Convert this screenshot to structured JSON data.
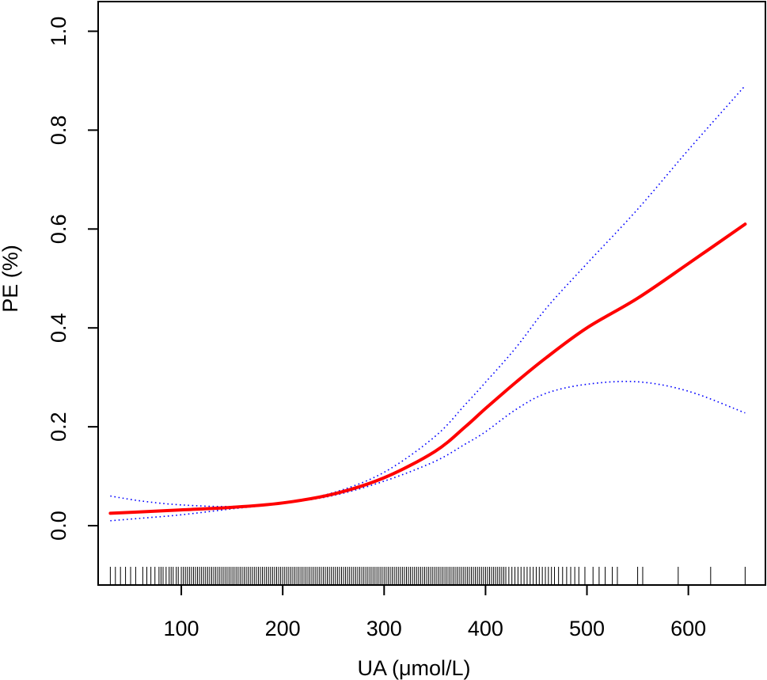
{
  "chart_data": {
    "type": "line",
    "xlabel": "UA (μmol/L)",
    "ylabel": "PE (%)",
    "xlim": [
      18,
      676
    ],
    "ylim": [
      -0.12,
      1.06
    ],
    "x_ticks": [
      100,
      200,
      300,
      400,
      500,
      600
    ],
    "x_tick_labels": [
      "100",
      "200",
      "300",
      "400",
      "500",
      "600"
    ],
    "y_ticks": [
      0.0,
      0.2,
      0.4,
      0.6,
      0.8,
      1.0
    ],
    "y_tick_labels": [
      "0.0",
      "0.2",
      "0.4",
      "0.6",
      "0.8",
      "1.0"
    ],
    "grid": false,
    "series": [
      {
        "role": "fit",
        "style": "solid",
        "color": "#ff0000",
        "x": [
          30,
          60,
          100,
          150,
          200,
          250,
          300,
          350,
          380,
          400,
          430,
          460,
          500,
          550,
          600,
          656
        ],
        "y": [
          0.025,
          0.028,
          0.032,
          0.037,
          0.046,
          0.064,
          0.097,
          0.15,
          0.2,
          0.237,
          0.29,
          0.34,
          0.4,
          0.46,
          0.53,
          0.61
        ]
      },
      {
        "role": "upper-ci",
        "style": "dotted",
        "color": "#0000ff",
        "x": [
          30,
          60,
          100,
          150,
          200,
          250,
          300,
          350,
          380,
          400,
          430,
          460,
          500,
          550,
          600,
          656
        ],
        "y": [
          0.06,
          0.05,
          0.042,
          0.039,
          0.047,
          0.067,
          0.108,
          0.18,
          0.245,
          0.29,
          0.36,
          0.44,
          0.53,
          0.64,
          0.76,
          0.89
        ]
      },
      {
        "role": "lower-ci",
        "style": "dotted",
        "color": "#0000ff",
        "x": [
          30,
          60,
          100,
          150,
          200,
          250,
          300,
          350,
          380,
          400,
          430,
          460,
          500,
          550,
          600,
          656
        ],
        "y": [
          0.01,
          0.015,
          0.022,
          0.034,
          0.045,
          0.061,
          0.09,
          0.13,
          0.165,
          0.19,
          0.235,
          0.268,
          0.286,
          0.291,
          0.272,
          0.228
        ]
      }
    ],
    "rug": [
      30,
      35,
      40,
      45,
      50,
      55,
      62,
      66,
      70,
      74,
      78,
      80,
      82,
      85,
      88,
      90,
      92,
      95,
      97,
      100,
      102,
      104,
      106,
      108,
      110,
      112,
      114,
      116,
      118,
      120,
      122,
      124,
      126,
      128,
      130,
      132,
      134,
      136,
      138,
      140,
      142,
      144,
      146,
      148,
      150,
      152,
      154,
      156,
      158,
      160,
      162,
      164,
      166,
      168,
      170,
      172,
      174,
      176,
      178,
      180,
      182,
      184,
      186,
      188,
      190,
      192,
      194,
      196,
      198,
      200,
      202,
      204,
      206,
      208,
      210,
      212,
      214,
      216,
      218,
      220,
      222,
      224,
      226,
      228,
      230,
      232,
      234,
      236,
      238,
      240,
      242,
      244,
      246,
      248,
      250,
      252,
      254,
      256,
      258,
      260,
      262,
      264,
      266,
      268,
      270,
      272,
      274,
      276,
      278,
      280,
      282,
      284,
      286,
      288,
      290,
      292,
      294,
      296,
      298,
      300,
      302,
      304,
      306,
      308,
      310,
      312,
      314,
      316,
      318,
      320,
      322,
      324,
      326,
      328,
      330,
      332,
      334,
      336,
      338,
      340,
      342,
      344,
      346,
      348,
      350,
      352,
      354,
      356,
      358,
      360,
      362,
      364,
      366,
      368,
      370,
      372,
      374,
      376,
      378,
      380,
      382,
      384,
      386,
      388,
      390,
      392,
      394,
      396,
      398,
      400,
      402,
      404,
      406,
      408,
      410,
      412,
      414,
      416,
      418,
      420,
      423,
      426,
      429,
      432,
      435,
      438,
      441,
      444,
      447,
      450,
      453,
      456,
      459,
      462,
      465,
      468,
      472,
      476,
      480,
      484,
      488,
      492,
      498,
      506,
      512,
      518,
      525,
      530,
      550,
      555,
      590,
      622,
      656
    ]
  }
}
